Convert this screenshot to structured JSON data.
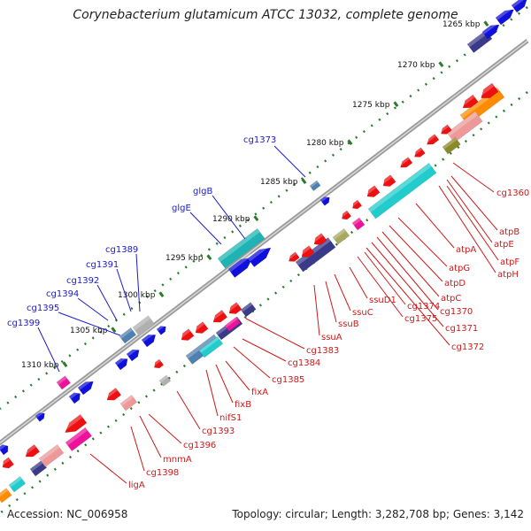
{
  "title": "Corynebacterium glutamicum ATCC 13032, complete genome",
  "footer": {
    "accession": "Accession: NC_006958",
    "summary": "Topology: circular; Length: 3,282,708 bp; Genes: 3,142"
  },
  "ticks": [
    "1265 kbp",
    "1270 kbp",
    "1275 kbp",
    "1280 kbp",
    "1285 kbp",
    "1290 kbp",
    "1295 kbp",
    "1300 kbp",
    "1305 kbp",
    "1310 kbp"
  ],
  "colors": {
    "backbone": "#8c8c8c",
    "forward_label": "#1a1acc",
    "reverse_label": "#cc1a1a",
    "forward_gene": "#1010dd",
    "reverse_gene": "#ee1010",
    "cyan_gene": "#22cccc",
    "teal_gene": "#1eb4b4",
    "orange_gene": "#ff8c00",
    "pink_gene": "#ee9999",
    "magenta_gene": "#ee1199",
    "navy_gene": "#3a3a8a",
    "olive_gene": "#8a8a2a",
    "steelblue_gene": "#5080b0",
    "khaki_gene": "#a8a860",
    "grey_gene": "#b0b0b0",
    "tick_green": "#2a7a2a"
  },
  "forward_labels": [
    "cg1373",
    "glgB",
    "glgE",
    "cg1389",
    "cg1391",
    "cg1392",
    "cg1394",
    "cg1395",
    "cg1399"
  ],
  "reverse_labels": [
    "cg1360",
    "atpB",
    "atpE",
    "atpF",
    "atpH",
    "atpA",
    "atpG",
    "atpD",
    "atpC",
    "cg1370",
    "cg1371",
    "cg1372",
    "cg1374",
    "cg1375",
    "ssuD1",
    "ssuC",
    "ssuB",
    "ssuA",
    "cg1383",
    "cg1384",
    "cg1385",
    "fixA",
    "fixB",
    "nifS1",
    "cg1393",
    "cg1396",
    "mnmA",
    "cg1398",
    "ligA"
  ]
}
